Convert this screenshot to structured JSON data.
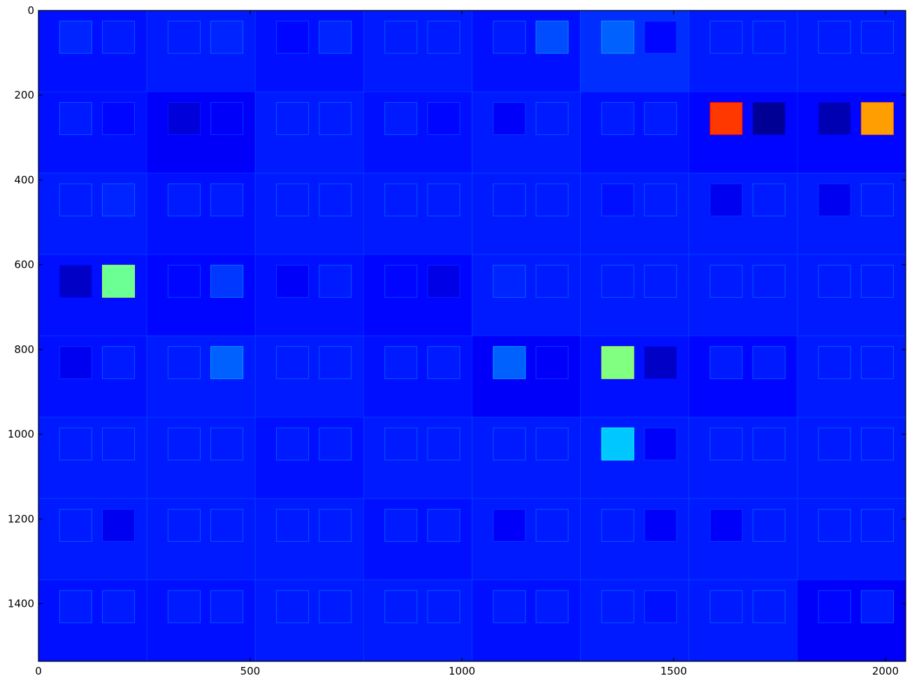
{
  "chart_data": {
    "type": "heatmap",
    "title": "",
    "xlabel": "",
    "ylabel": "",
    "colormap": "jet",
    "xlim": [
      0,
      2048
    ],
    "ylim": [
      1536,
      0
    ],
    "x_ticks": [
      0,
      500,
      1000,
      1500,
      2000
    ],
    "y_ticks": [
      0,
      200,
      400,
      600,
      800,
      1000,
      1200,
      1400
    ],
    "grid": false,
    "tile_grid": {
      "rows": 8,
      "cols": 8,
      "tile_width": 256,
      "tile_height": 192
    },
    "patch_size": 76,
    "patch_offsets": {
      "row": 25,
      "left_col": 50,
      "right_col": 151
    },
    "background_level": 0.14,
    "tile_levels": [
      [
        0.14,
        0.15,
        0.14,
        0.15,
        0.14,
        0.17,
        0.15,
        0.15
      ],
      [
        0.14,
        0.12,
        0.15,
        0.14,
        0.15,
        0.14,
        0.13,
        0.13
      ],
      [
        0.15,
        0.14,
        0.15,
        0.15,
        0.15,
        0.15,
        0.15,
        0.15
      ],
      [
        0.14,
        0.13,
        0.14,
        0.13,
        0.15,
        0.15,
        0.15,
        0.15
      ],
      [
        0.14,
        0.15,
        0.15,
        0.14,
        0.12,
        0.14,
        0.13,
        0.15
      ],
      [
        0.15,
        0.15,
        0.14,
        0.15,
        0.15,
        0.15,
        0.15,
        0.15
      ],
      [
        0.15,
        0.15,
        0.15,
        0.14,
        0.15,
        0.15,
        0.15,
        0.15
      ],
      [
        0.14,
        0.14,
        0.15,
        0.15,
        0.14,
        0.15,
        0.15,
        0.12
      ]
    ],
    "patch_levels": [
      [
        0.16,
        0.15,
        0.15,
        0.16,
        0.13,
        0.16,
        0.15,
        0.15,
        0.15,
        0.2,
        0.22,
        0.13,
        0.15,
        0.15,
        0.15,
        0.15
      ],
      [
        0.15,
        0.13,
        0.09,
        0.12,
        0.15,
        0.15,
        0.15,
        0.13,
        0.12,
        0.15,
        0.15,
        0.15,
        0.82,
        0.02,
        0.05,
        0.72
      ],
      [
        0.15,
        0.16,
        0.15,
        0.15,
        0.15,
        0.15,
        0.15,
        0.15,
        0.15,
        0.15,
        0.14,
        0.15,
        0.11,
        0.15,
        0.11,
        0.15
      ],
      [
        0.07,
        0.48,
        0.13,
        0.18,
        0.12,
        0.15,
        0.13,
        0.1,
        0.16,
        0.15,
        0.15,
        0.15,
        0.15,
        0.15,
        0.15,
        0.15
      ],
      [
        0.11,
        0.15,
        0.15,
        0.22,
        0.15,
        0.15,
        0.15,
        0.15,
        0.22,
        0.12,
        0.5,
        0.07,
        0.15,
        0.15,
        0.15,
        0.15
      ],
      [
        0.15,
        0.15,
        0.15,
        0.15,
        0.15,
        0.15,
        0.15,
        0.15,
        0.15,
        0.15,
        0.32,
        0.12,
        0.15,
        0.15,
        0.15,
        0.15
      ],
      [
        0.15,
        0.11,
        0.15,
        0.15,
        0.15,
        0.15,
        0.15,
        0.15,
        0.12,
        0.15,
        0.15,
        0.12,
        0.12,
        0.15,
        0.15,
        0.15
      ],
      [
        0.15,
        0.15,
        0.15,
        0.15,
        0.15,
        0.15,
        0.15,
        0.15,
        0.15,
        0.15,
        0.15,
        0.14,
        0.15,
        0.15,
        0.13,
        0.15
      ]
    ]
  }
}
